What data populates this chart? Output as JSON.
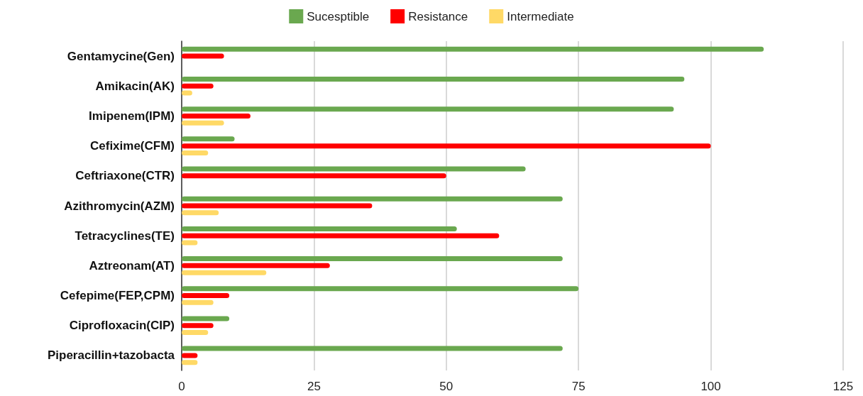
{
  "chart_data": {
    "type": "bar",
    "orientation": "horizontal",
    "categories": [
      "Gentamycine(Gen)",
      "Amikacin(AK)",
      "Imipenem(IPM)",
      "Cefixime(CFM)",
      "Ceftriaxone(CTR)",
      "Azithromycin(AZM)",
      "Tetracyclines(TE)",
      "Aztreonam(AT)",
      "Cefepime(FEP,CPM)",
      "Ciprofloxacin(CIP)",
      "Piperacillin+tazobacta"
    ],
    "series": [
      {
        "name": "Sucesptible",
        "color": "#6aa84f",
        "values": [
          110,
          95,
          93,
          10,
          65,
          72,
          52,
          72,
          75,
          9,
          72
        ]
      },
      {
        "name": "Resistance",
        "color": "#ff0000",
        "values": [
          8,
          6,
          13,
          100,
          50,
          36,
          60,
          28,
          9,
          6,
          3
        ]
      },
      {
        "name": "Intermediate",
        "color": "#ffd966",
        "values": [
          null,
          2,
          8,
          5,
          null,
          7,
          3,
          16,
          6,
          5,
          3
        ]
      }
    ],
    "xlim": [
      0,
      125
    ],
    "xticks": [
      0,
      25,
      50,
      75,
      100,
      125
    ],
    "grid": "x",
    "legend": "top"
  }
}
